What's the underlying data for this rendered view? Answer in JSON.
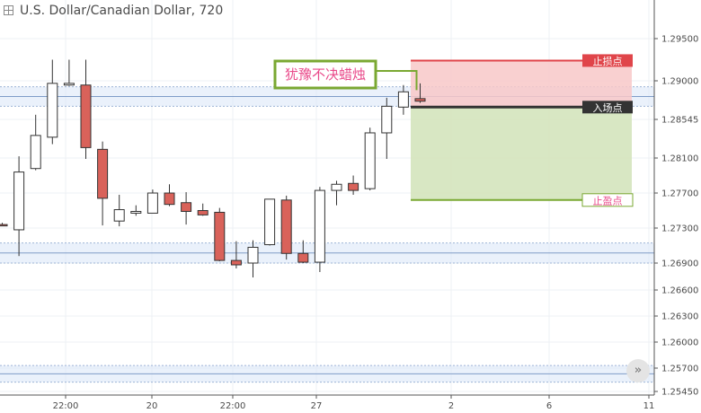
{
  "chart_data": {
    "type": "candlestick",
    "title": "U.S. Dollar/Canadian Dollar, 720",
    "x_tick_labels": [
      "22:00",
      "20",
      "22:00",
      "27",
      "2",
      "6",
      "11"
    ],
    "y_ticks": [
      1.295,
      1.29,
      1.28545,
      1.281,
      1.277,
      1.273,
      1.269,
      1.266,
      1.263,
      1.26,
      1.257,
      1.2545
    ],
    "y_tick_labels": [
      "1.29500",
      "1.29000",
      "1.28545",
      "1.28100",
      "1.27700",
      "1.27300",
      "1.26900",
      "1.26600",
      "1.26300",
      "1.26000",
      "1.25700",
      "1.25450"
    ],
    "candles": [
      {
        "o": 1.2734,
        "h": 1.2736,
        "l": 1.2733,
        "c": 1.2733
      },
      {
        "o": 1.2728,
        "h": 1.2812,
        "l": 1.2698,
        "c": 1.2794
      },
      {
        "o": 1.2798,
        "h": 1.286,
        "l": 1.2796,
        "c": 1.2836
      },
      {
        "o": 1.2834,
        "h": 1.2925,
        "l": 1.2826,
        "c": 1.2897
      },
      {
        "o": 1.2895,
        "h": 1.2925,
        "l": 1.2894,
        "c": 1.2897
      },
      {
        "o": 1.2895,
        "h": 1.2925,
        "l": 1.2809,
        "c": 1.2822
      },
      {
        "o": 1.282,
        "h": 1.2829,
        "l": 1.2733,
        "c": 1.2764
      },
      {
        "o": 1.2738,
        "h": 1.2768,
        "l": 1.2732,
        "c": 1.2751
      },
      {
        "o": 1.2747,
        "h": 1.2756,
        "l": 1.2744,
        "c": 1.2749
      },
      {
        "o": 1.2747,
        "h": 1.2774,
        "l": 1.2747,
        "c": 1.277
      },
      {
        "o": 1.277,
        "h": 1.278,
        "l": 1.2755,
        "c": 1.2757
      },
      {
        "o": 1.2759,
        "h": 1.2771,
        "l": 1.2734,
        "c": 1.2749
      },
      {
        "o": 1.275,
        "h": 1.2758,
        "l": 1.2744,
        "c": 1.2745
      },
      {
        "o": 1.2748,
        "h": 1.2753,
        "l": 1.2692,
        "c": 1.2693
      },
      {
        "o": 1.2693,
        "h": 1.2715,
        "l": 1.2684,
        "c": 1.2688
      },
      {
        "o": 1.269,
        "h": 1.2716,
        "l": 1.2674,
        "c": 1.2708
      },
      {
        "o": 1.2711,
        "h": 1.2763,
        "l": 1.271,
        "c": 1.2763
      },
      {
        "o": 1.2762,
        "h": 1.2767,
        "l": 1.2694,
        "c": 1.2701
      },
      {
        "o": 1.2701,
        "h": 1.2716,
        "l": 1.269,
        "c": 1.2691
      },
      {
        "o": 1.2691,
        "h": 1.2777,
        "l": 1.268,
        "c": 1.2773
      },
      {
        "o": 1.2773,
        "h": 1.2784,
        "l": 1.2756,
        "c": 1.278
      },
      {
        "o": 1.2781,
        "h": 1.279,
        "l": 1.2768,
        "c": 1.2773
      },
      {
        "o": 1.2775,
        "h": 1.2845,
        "l": 1.2773,
        "c": 1.2839
      },
      {
        "o": 1.2839,
        "h": 1.288,
        "l": 1.2809,
        "c": 1.287
      },
      {
        "o": 1.2869,
        "h": 1.2895,
        "l": 1.286,
        "c": 1.2887
      },
      {
        "o": 1.2879,
        "h": 1.2897,
        "l": 1.2874,
        "c": 1.2876
      }
    ],
    "horizontal_bands": [
      {
        "upper": 1.2893,
        "lower": 1.287
      },
      {
        "upper": 1.2713,
        "lower": 1.269
      },
      {
        "upper": 1.2573,
        "lower": 1.2555
      }
    ],
    "position": {
      "stop_loss": 1.2924,
      "entry": 1.2869,
      "take_profit": 1.2762,
      "stop_loss_label": "止损点",
      "entry_label": "入场点",
      "take_profit_label": "止盈点"
    },
    "annotation": "犹豫不决蜡烛",
    "colors": {
      "up_body": "#ffffff",
      "down_body": "#d9625a",
      "candle_outline": "#333333",
      "band_fill": "#dce8f8",
      "risk_zone": "#f8c8c8",
      "reward_zone": "#d4e4bc",
      "stop_line": "#e0454a",
      "entry_line": "#333333",
      "target_line": "#7aa832",
      "annotation_color": "#e94a8a",
      "annotation_border": "#7aa832"
    }
  },
  "controls": {
    "scroll_glyph": "»"
  }
}
